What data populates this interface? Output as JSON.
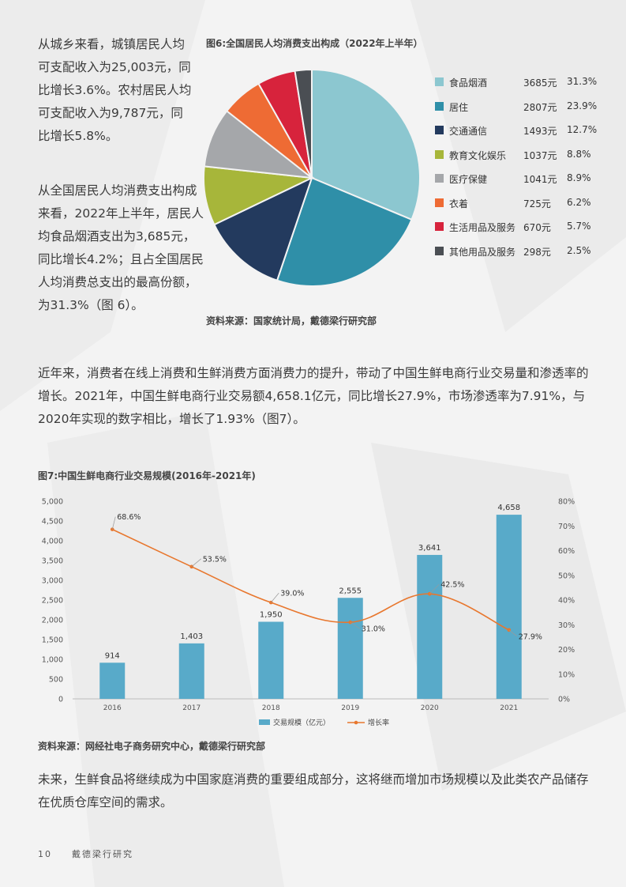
{
  "paragraphs": {
    "p1": "从城乡来看，城镇居民人均可支配收入为25,003元，同比增长3.6%。农村居民人均可支配收入为9,787元，同比增长5.8%。",
    "p2": "从全国居民人均消费支出构成来看，2022年上半年，居民人均食品烟酒支出为3,685元，同比增长4.2%；且占全国居民人均消费总支出的最高份额，为31.3%（图 6）。",
    "p3": "近年来，消费者在线上消费和生鲜消费方面消费力的提升，带动了中国生鲜电商行业交易量和渗透率的增长。2021年，中国生鲜电商行业交易额4,658.1亿元，同比增长27.9%，市场渗透率为7.91%，与2020年实现的数字相比，增长了1.93%（图7）。",
    "p4": "未来，生鲜食品将继续成为中国家庭消费的重要组成部分，这将继而增加市场规模以及此类农产品储存在优质仓库空间的需求。"
  },
  "figure6": {
    "title": "图6:全国居民人均消费支出构成（2022年上半年）",
    "source": "资料来源：国家统计局，戴德梁行研究部"
  },
  "figure7": {
    "title": "图7:中国生鲜电商行业交易规模(2016年-2021年)",
    "source": "资料来源：网经社电子商务研究中心，戴德梁行研究部"
  },
  "footer": {
    "page_number": "10",
    "brand": "戴德梁行研究"
  },
  "chart_data": [
    {
      "type": "pie",
      "title": "图6:全国居民人均消费支出构成（2022年上半年）",
      "slices": [
        {
          "name": "食品烟酒",
          "amount": "3685元",
          "percent": "31.3%",
          "value": 31.3,
          "color": "#8cc7d0"
        },
        {
          "name": "居住",
          "amount": "2807元",
          "percent": "23.9%",
          "value": 23.9,
          "color": "#2f8fa8"
        },
        {
          "name": "交通通信",
          "amount": "1493元",
          "percent": "12.7%",
          "value": 12.7,
          "color": "#233a5e"
        },
        {
          "name": "教育文化娱乐",
          "amount": "1037元",
          "percent": "8.8%",
          "value": 8.8,
          "color": "#a7b63a"
        },
        {
          "name": "医疗保健",
          "amount": "1041元",
          "percent": "8.9%",
          "value": 8.9,
          "color": "#a5a7aa"
        },
        {
          "name": "衣着",
          "amount": "725元",
          "percent": "6.2%",
          "value": 6.2,
          "color": "#ee6b34"
        },
        {
          "name": "生活用品及服务",
          "amount": "670元",
          "percent": "5.7%",
          "value": 5.7,
          "color": "#d7233c"
        },
        {
          "name": "其他用品及服务",
          "amount": "298元",
          "percent": "2.5%",
          "value": 2.5,
          "color": "#4a4e53"
        }
      ]
    },
    {
      "type": "bar",
      "title": "图7:中国生鲜电商行业交易规模(2016年-2021年)",
      "categories": [
        "2016",
        "2017",
        "2018",
        "2019",
        "2020",
        "2021"
      ],
      "series": [
        {
          "name": "交易规模（亿元）",
          "type": "bar",
          "values": [
            914,
            1403,
            1950,
            2555,
            3641,
            4658
          ],
          "labels": [
            "914",
            "1,403",
            "1,950",
            "2,555",
            "3,641",
            "4,658"
          ],
          "color": "#58aac9"
        },
        {
          "name": "增长率",
          "type": "line",
          "axis": "right",
          "values": [
            68.6,
            53.5,
            39.0,
            31.0,
            42.5,
            27.9
          ],
          "labels": [
            "68.6%",
            "53.5%",
            "39.0%",
            "31.0%",
            "42.5%",
            "27.9%"
          ],
          "color": "#e8772e"
        }
      ],
      "ylim_left": [
        0,
        5000
      ],
      "yticks_left": [
        "0",
        "500",
        "1,000",
        "1,500",
        "2,000",
        "2,500",
        "3,000",
        "3,500",
        "4,000",
        "4,500",
        "5,000"
      ],
      "ylim_right": [
        0,
        80
      ],
      "yticks_right": [
        "0%",
        "10%",
        "20%",
        "30%",
        "40%",
        "50%",
        "60%",
        "70%",
        "80%"
      ],
      "legend": "bottom"
    }
  ]
}
